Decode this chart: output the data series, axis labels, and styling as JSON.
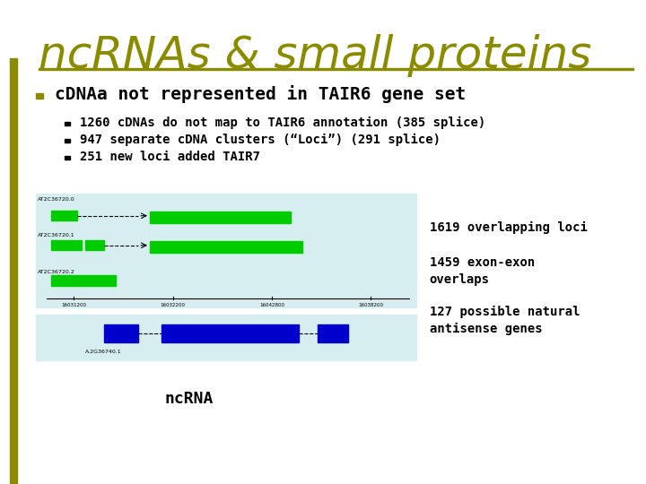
{
  "title": "ncRNAs & small proteins",
  "title_color": "#8B8B00",
  "title_fontsize": 36,
  "bg_color": "#FFFFFF",
  "left_bar_color": "#8B8B00",
  "h_line_color": "#8B8B00",
  "bullet1": "cDNAa not represented in TAIR6 gene set",
  "sub_bullets": [
    "1260 cDNAs do not map to TAIR6 annotation (385 splice)",
    "947 separate cDNA clusters (“Loci”) (291 splice)",
    "251 new loci added TAIR7"
  ],
  "image_bg": "#D6EEF0",
  "image_green": "#00CC00",
  "image_blue": "#0000CC",
  "right_annotations": [
    "1619 overlapping loci",
    "1459 exon-exon\noverlaps",
    "127 possible natural\nantisense genes"
  ],
  "ncRNA_label": "ncRNA",
  "bullet_square_color": "#8B8B00",
  "sub_bullet_square_color": "#000000",
  "text_color": "#000000"
}
